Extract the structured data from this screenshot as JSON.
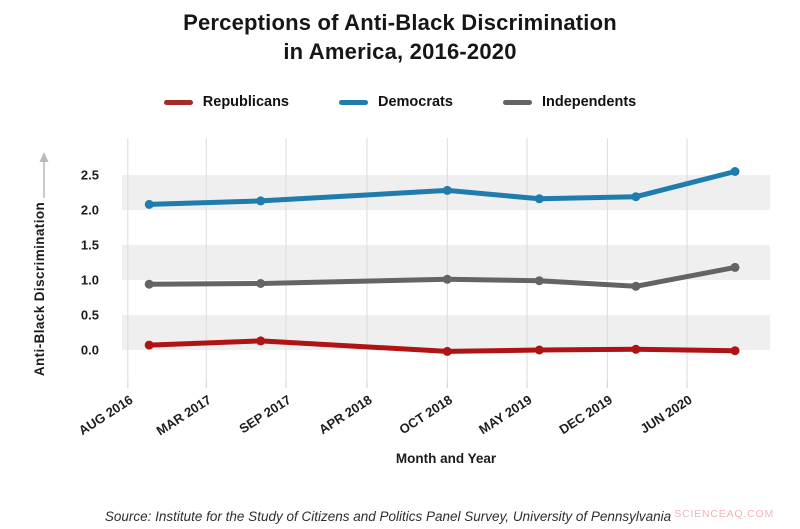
{
  "title": {
    "line1": "Perceptions of Anti-Black Discrimination",
    "line2": "in America, 2016-2020"
  },
  "legend": [
    {
      "label": "Republicans",
      "color": "#a72a2a"
    },
    {
      "label": "Democrats",
      "color": "#1f7cad"
    },
    {
      "label": "Independents",
      "color": "#646464"
    }
  ],
  "source": {
    "text": "Source: Institute for the Study of Citizens and Politics Panel Survey, University of Pennsylvania"
  },
  "watermark": {
    "text": "SCIENCEAQ.COM"
  },
  "colors": {
    "band": "#efefef",
    "gridline": "#dbdbdb",
    "tick": "#cfcfcf",
    "arrow": "#b9b9b9"
  },
  "chart_data": {
    "type": "line",
    "title": "Perceptions of Anti-Black Discrimination in America, 2016-2020",
    "xlabel": "Month and Year",
    "ylabel": "Anti-Black Discrimination",
    "x_tick_labels": [
      "AUG 2016",
      "MAR 2017",
      "SEP 2017",
      "APR 2018",
      "OCT 2018",
      "MAY 2019",
      "DEC 2019",
      "JUN 2020"
    ],
    "gridline_x_percent": [
      0.9,
      13.0,
      25.3,
      37.8,
      50.2,
      62.5,
      74.9,
      87.2
    ],
    "point_x_percent": [
      4.2,
      21.4,
      50.2,
      64.4,
      79.3,
      94.6
    ],
    "yticks": [
      0.0,
      0.5,
      1.0,
      1.5,
      2.0,
      2.5
    ],
    "ylim": [
      -0.45,
      3.0
    ],
    "grid": "vertical-only",
    "plot_bands": [
      [
        0.0,
        0.5
      ],
      [
        1.0,
        1.5
      ],
      [
        2.0,
        2.5
      ]
    ],
    "legend_position": "top",
    "series": [
      {
        "name": "Democrats",
        "color": "#1f7cad",
        "values": [
          2.08,
          2.13,
          2.28,
          2.16,
          2.19,
          2.55
        ]
      },
      {
        "name": "Independents",
        "color": "#646464",
        "values": [
          0.94,
          0.95,
          1.01,
          0.99,
          0.91,
          1.18
        ]
      },
      {
        "name": "Republicans",
        "color": "#b01313",
        "values": [
          0.07,
          0.13,
          -0.02,
          0.0,
          0.01,
          -0.01
        ]
      }
    ]
  }
}
